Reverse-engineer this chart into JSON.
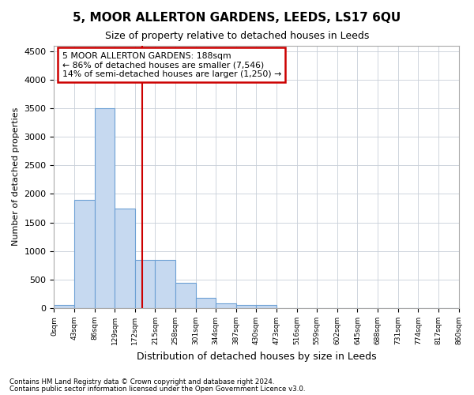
{
  "title": "5, MOOR ALLERTON GARDENS, LEEDS, LS17 6QU",
  "subtitle": "Size of property relative to detached houses in Leeds",
  "xlabel": "Distribution of detached houses by size in Leeds",
  "ylabel": "Number of detached properties",
  "footnote1": "Contains HM Land Registry data © Crown copyright and database right 2024.",
  "footnote2": "Contains public sector information licensed under the Open Government Licence v3.0.",
  "annotation_line1": "5 MOOR ALLERTON GARDENS: 188sqm",
  "annotation_line2": "← 86% of detached houses are smaller (7,546)",
  "annotation_line3": "14% of semi-detached houses are larger (1,250) →",
  "property_size": 188,
  "bin_edges": [
    0,
    43,
    86,
    129,
    172,
    215,
    258,
    301,
    344,
    387,
    430,
    473,
    516,
    559,
    602,
    645,
    688,
    731,
    774,
    817,
    860
  ],
  "bin_counts": [
    50,
    1900,
    3500,
    1750,
    850,
    850,
    450,
    175,
    90,
    60,
    50,
    0,
    0,
    0,
    0,
    0,
    0,
    0,
    0,
    0
  ],
  "bar_color": "#c6d9f0",
  "bar_edge_color": "#6ca0d4",
  "red_line_color": "#cc0000",
  "grid_color": "#c8cfd8",
  "background_color": "#ffffff",
  "annotation_box_color": "#cc0000",
  "ylim": [
    0,
    4600
  ],
  "yticks": [
    0,
    500,
    1000,
    1500,
    2000,
    2500,
    3000,
    3500,
    4000,
    4500
  ]
}
